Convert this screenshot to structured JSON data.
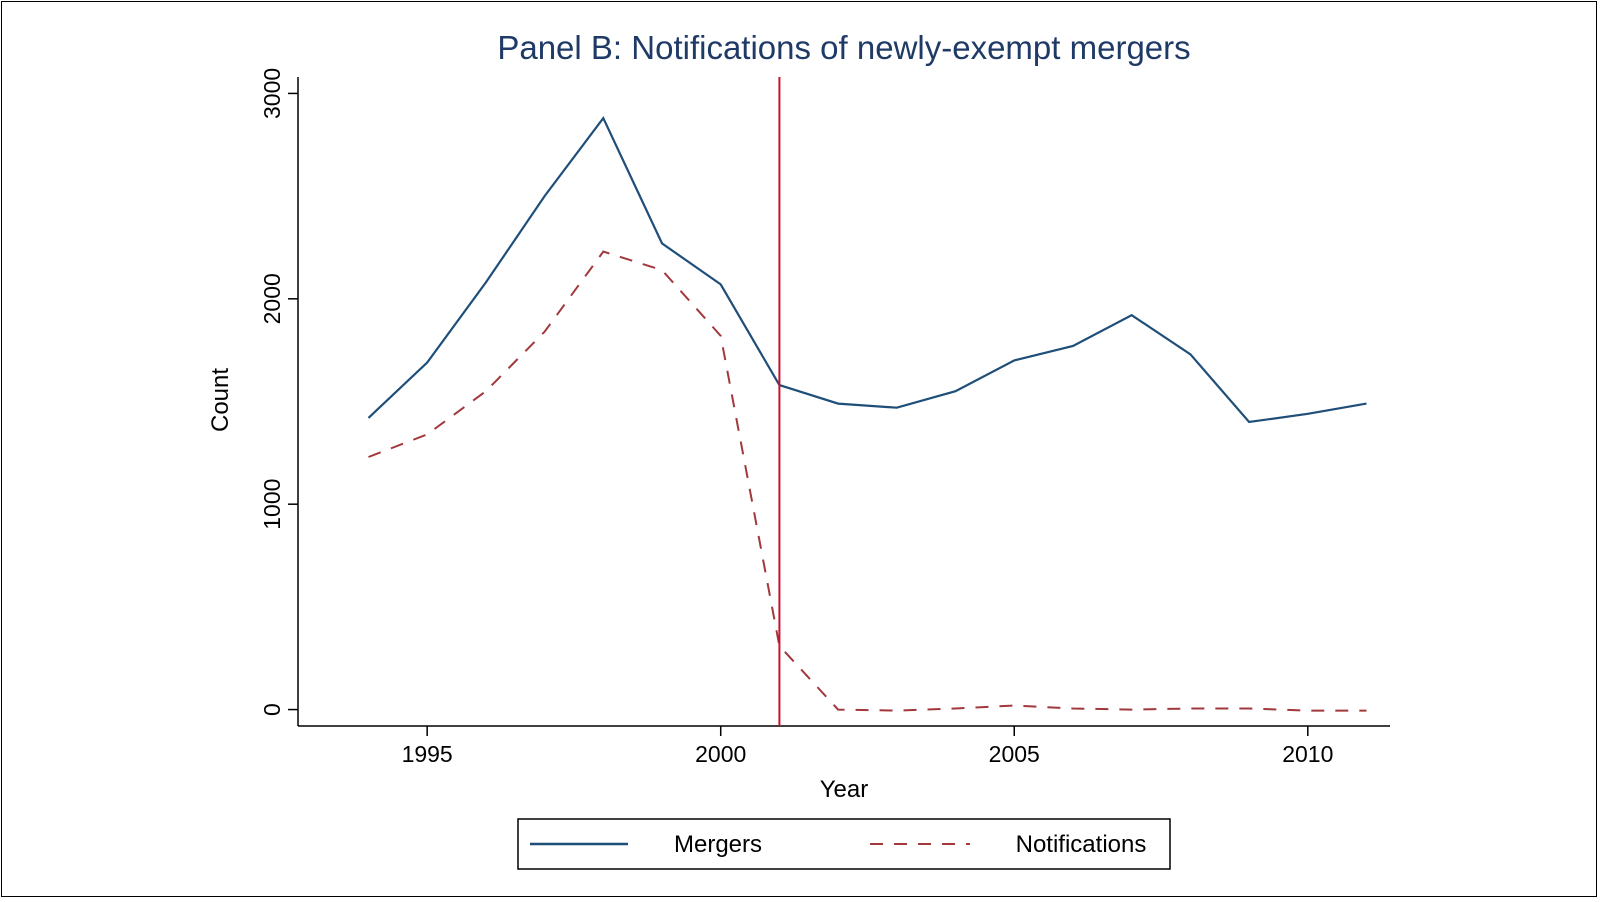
{
  "chart_data": {
    "type": "line",
    "title": "Panel B: Notifications of newly-exempt mergers",
    "xlabel": "Year",
    "ylabel": "Count",
    "xlim": [
      1992.8,
      2011.4
    ],
    "ylim": [
      -80,
      3080
    ],
    "x_ticks": [
      1995,
      2000,
      2005,
      2010
    ],
    "y_ticks": [
      0,
      1000,
      2000,
      3000
    ],
    "grid": false,
    "legend_position": "bottom",
    "reference_line": {
      "x": 2001,
      "color": "#c8102e"
    },
    "x": [
      1994,
      1995,
      1996,
      1997,
      1998,
      1999,
      2000,
      2001,
      2002,
      2003,
      2004,
      2005,
      2006,
      2007,
      2008,
      2009,
      2010,
      2011
    ],
    "series": [
      {
        "name": "Mergers",
        "color": "#1f4e79",
        "style": "solid",
        "values": [
          1420,
          1690,
          2080,
          2500,
          2880,
          2270,
          2070,
          1580,
          1490,
          1470,
          1550,
          1700,
          1770,
          1920,
          1730,
          1400,
          1440,
          1490
        ]
      },
      {
        "name": "Notifications",
        "color": "#a2383c",
        "style": "dashed",
        "values": [
          1230,
          1340,
          1550,
          1840,
          2230,
          2140,
          1820,
          310,
          0,
          -5,
          5,
          20,
          5,
          0,
          5,
          5,
          -5,
          -5
        ]
      }
    ]
  }
}
